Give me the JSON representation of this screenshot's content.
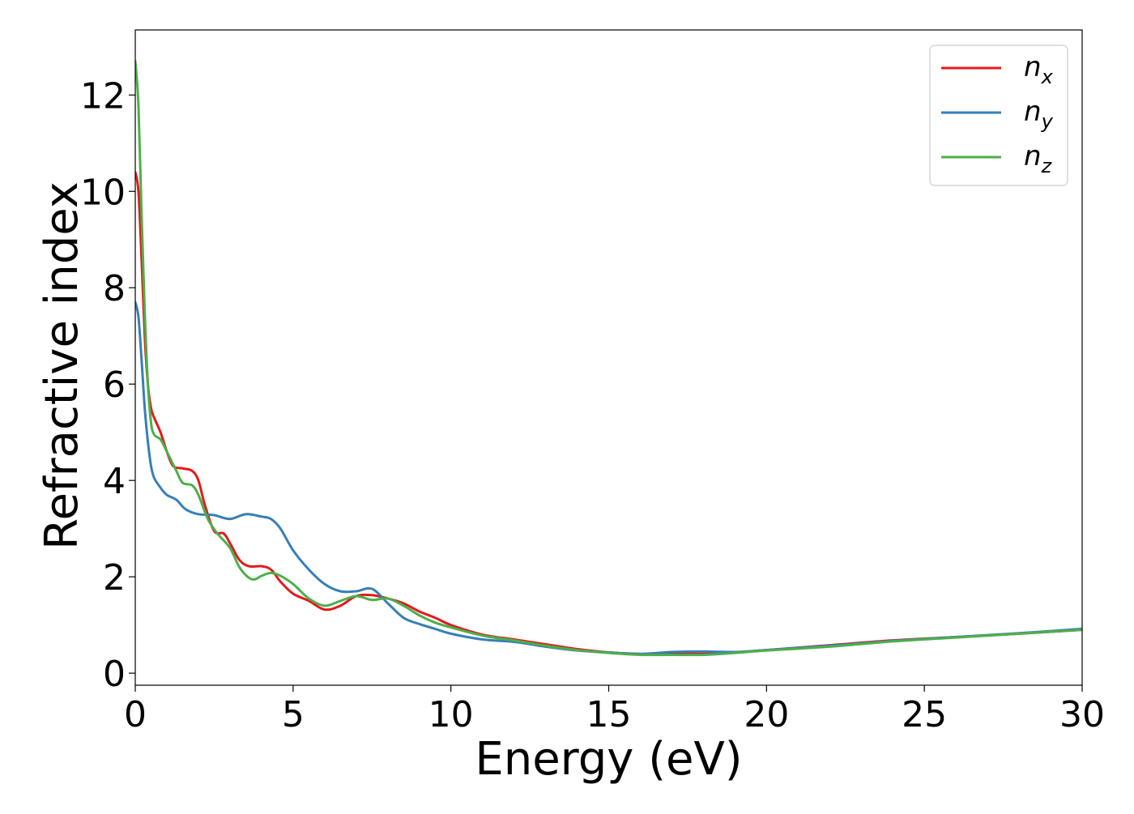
{
  "chart_data": {
    "type": "line",
    "title": "",
    "xlabel": "Energy (eV)",
    "ylabel": "Refractive index",
    "xlim": [
      0,
      30
    ],
    "ylim": [
      -0.25,
      13.35
    ],
    "xticks": [
      0,
      5,
      10,
      15,
      20,
      25,
      30
    ],
    "xtick_labels": [
      "0",
      "5",
      "10",
      "15",
      "20",
      "25",
      "30"
    ],
    "yticks": [
      0,
      2,
      4,
      6,
      8,
      10,
      12
    ],
    "ytick_labels": [
      "0",
      "2",
      "4",
      "6",
      "8",
      "10",
      "12"
    ],
    "grid": false,
    "legend_position": "top-right",
    "series": [
      {
        "name": "n_x",
        "legend_base": "n",
        "legend_sub": "x",
        "color": "#e41a1c",
        "x": [
          0,
          0.1,
          0.2,
          0.3,
          0.4,
          0.5,
          0.6,
          0.8,
          1.0,
          1.2,
          1.5,
          1.8,
          2.0,
          2.2,
          2.5,
          2.8,
          3.0,
          3.3,
          3.6,
          4.0,
          4.3,
          4.6,
          5.0,
          5.5,
          6.0,
          6.5,
          7.0,
          7.5,
          8.0,
          8.5,
          9.0,
          9.5,
          10.0,
          11.0,
          12.0,
          13.0,
          14.0,
          15.0,
          16.0,
          17.0,
          18.0,
          19.0,
          20.0,
          22.0,
          24.0,
          26.0,
          28.0,
          30.0
        ],
        "y": [
          10.4,
          10.0,
          8.6,
          7.0,
          6.0,
          5.5,
          5.3,
          5.0,
          4.6,
          4.3,
          4.25,
          4.2,
          4.0,
          3.5,
          2.95,
          2.9,
          2.7,
          2.35,
          2.22,
          2.22,
          2.15,
          1.9,
          1.65,
          1.5,
          1.32,
          1.4,
          1.6,
          1.62,
          1.55,
          1.45,
          1.28,
          1.15,
          1.0,
          0.8,
          0.7,
          0.6,
          0.5,
          0.43,
          0.4,
          0.4,
          0.4,
          0.43,
          0.48,
          0.58,
          0.68,
          0.75,
          0.82,
          0.9
        ]
      },
      {
        "name": "n_y",
        "legend_base": "n",
        "legend_sub": "y",
        "color": "#377eb8",
        "x": [
          0,
          0.1,
          0.2,
          0.3,
          0.4,
          0.5,
          0.6,
          0.8,
          1.0,
          1.3,
          1.6,
          2.0,
          2.5,
          3.0,
          3.5,
          4.0,
          4.3,
          4.6,
          5.0,
          5.5,
          6.0,
          6.5,
          7.0,
          7.5,
          8.0,
          8.5,
          9.0,
          9.5,
          10.0,
          11.0,
          12.0,
          13.0,
          14.0,
          15.0,
          16.0,
          17.0,
          18.0,
          19.0,
          20.0,
          22.0,
          24.0,
          26.0,
          28.0,
          30.0
        ],
        "y": [
          7.7,
          7.4,
          6.5,
          5.5,
          4.8,
          4.3,
          4.05,
          3.85,
          3.7,
          3.6,
          3.4,
          3.3,
          3.28,
          3.2,
          3.3,
          3.25,
          3.2,
          3.0,
          2.55,
          2.15,
          1.85,
          1.7,
          1.7,
          1.75,
          1.45,
          1.15,
          1.02,
          0.92,
          0.82,
          0.7,
          0.65,
          0.55,
          0.47,
          0.43,
          0.4,
          0.44,
          0.45,
          0.44,
          0.48,
          0.57,
          0.67,
          0.75,
          0.83,
          0.92
        ]
      },
      {
        "name": "n_z",
        "legend_base": "n",
        "legend_sub": "z",
        "color": "#4daf4a",
        "x": [
          0,
          0.1,
          0.2,
          0.3,
          0.4,
          0.5,
          0.6,
          0.8,
          1.0,
          1.3,
          1.5,
          1.8,
          2.0,
          2.3,
          2.6,
          3.0,
          3.3,
          3.6,
          3.8,
          4.0,
          4.3,
          4.6,
          5.0,
          5.5,
          6.0,
          6.5,
          7.0,
          7.5,
          8.0,
          8.5,
          9.0,
          9.5,
          10.0,
          11.0,
          12.0,
          13.0,
          14.0,
          15.0,
          16.0,
          17.0,
          18.0,
          19.0,
          20.0,
          22.0,
          24.0,
          26.0,
          28.0,
          30.0
        ],
        "y": [
          12.7,
          11.8,
          9.5,
          7.5,
          6.0,
          5.2,
          4.95,
          4.85,
          4.6,
          4.2,
          3.95,
          3.9,
          3.7,
          3.2,
          2.9,
          2.6,
          2.2,
          1.98,
          1.95,
          2.02,
          2.08,
          2.02,
          1.85,
          1.55,
          1.4,
          1.5,
          1.6,
          1.52,
          1.55,
          1.4,
          1.2,
          1.05,
          0.95,
          0.78,
          0.68,
          0.57,
          0.48,
          0.42,
          0.38,
          0.38,
          0.38,
          0.42,
          0.47,
          0.55,
          0.66,
          0.74,
          0.82,
          0.9
        ]
      }
    ]
  }
}
